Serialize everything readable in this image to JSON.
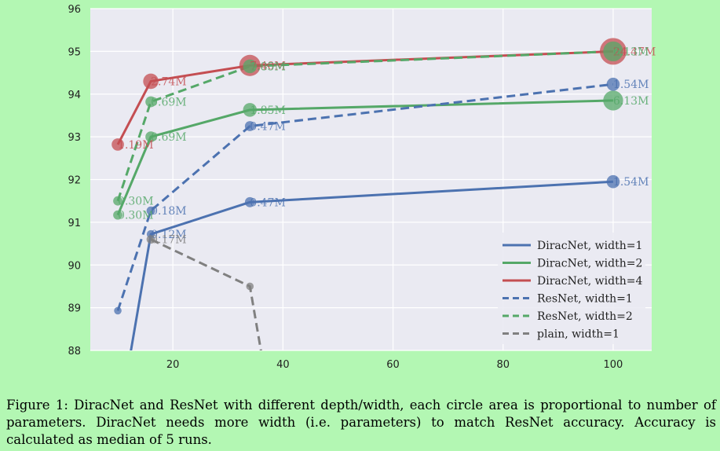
{
  "chart_data": {
    "type": "line",
    "xlim": [
      5,
      107
    ],
    "ylim": [
      88,
      96
    ],
    "xticks": [
      20,
      40,
      60,
      80,
      100
    ],
    "yticks": [
      88,
      89,
      90,
      91,
      92,
      93,
      94,
      95,
      96
    ],
    "grid": true,
    "legend_placement": "lower-right",
    "marker_size": "circle area proportional to number of parameters",
    "series": [
      {
        "name": "DiracNet, width=1",
        "color": "#4c72b0",
        "dash": "solid",
        "points": [
          {
            "x": 10,
            "y": 86.2,
            "label": ""
          },
          {
            "x": 16,
            "y": 90.72,
            "label": "0.12M",
            "params": 0.12
          },
          {
            "x": 34,
            "y": 91.47,
            "label": "0.47M",
            "params": 0.47
          },
          {
            "x": 100,
            "y": 91.95,
            "label": "1.54M",
            "params": 1.54
          }
        ]
      },
      {
        "name": "DiracNet, width=2",
        "color": "#55a868",
        "dash": "solid",
        "points": [
          {
            "x": 10,
            "y": 91.17,
            "label": "0.30M",
            "params": 0.3
          },
          {
            "x": 16,
            "y": 93.0,
            "label": "0.69M",
            "params": 0.69
          },
          {
            "x": 34,
            "y": 93.63,
            "label": "1.85M",
            "params": 1.85
          },
          {
            "x": 100,
            "y": 93.85,
            "label": "6.13M",
            "params": 6.13
          }
        ]
      },
      {
        "name": "DiracNet, width=4",
        "color": "#c44e52",
        "dash": "solid",
        "points": [
          {
            "x": 10,
            "y": 92.82,
            "label": "1.19M",
            "params": 1.19
          },
          {
            "x": 16,
            "y": 94.3,
            "label": "2.74M",
            "params": 2.74
          },
          {
            "x": 34,
            "y": 94.67,
            "label": "7.40M",
            "params": 7.4
          },
          {
            "x": 100,
            "y": 95.0,
            "label": "24.47M",
            "params": 24.47
          }
        ]
      },
      {
        "name": "ResNet, width=1",
        "color": "#4c72b0",
        "dash": "dashed",
        "points": [
          {
            "x": 10,
            "y": 88.93,
            "label": ""
          },
          {
            "x": 16,
            "y": 91.27,
            "label": "0.18M",
            "params": 0.18
          },
          {
            "x": 34,
            "y": 93.25,
            "label": "0.47M",
            "params": 0.47
          },
          {
            "x": 100,
            "y": 94.23,
            "label": "1.54M",
            "params": 1.54
          }
        ]
      },
      {
        "name": "ResNet, width=2",
        "color": "#55a868",
        "dash": "dashed",
        "points": [
          {
            "x": 10,
            "y": 91.5,
            "label": "0.30M",
            "params": 0.3
          },
          {
            "x": 16,
            "y": 93.82,
            "label": "0.69M",
            "params": 0.69
          },
          {
            "x": 34,
            "y": 94.65,
            "label": "1.85M",
            "params": 1.85
          },
          {
            "x": 100,
            "y": 95.0,
            "label": "6.13M",
            "params": 6.13
          }
        ]
      },
      {
        "name": "plain, width=1",
        "color": "#808080",
        "dash": "dashed",
        "points": [
          {
            "x": 16,
            "y": 90.6,
            "label": "0.17M",
            "params": 0.17
          },
          {
            "x": 34,
            "y": 89.5,
            "label": ""
          },
          {
            "x": 38,
            "y": 86.5,
            "label": ""
          }
        ]
      }
    ]
  },
  "caption": "Figure 1: DiracNet and ResNet with different depth/width, each circle area is proportional to number of parameters. DiracNet needs more width (i.e. parameters) to match ResNet accuracy. Accuracy is calculated as median of 5 runs."
}
